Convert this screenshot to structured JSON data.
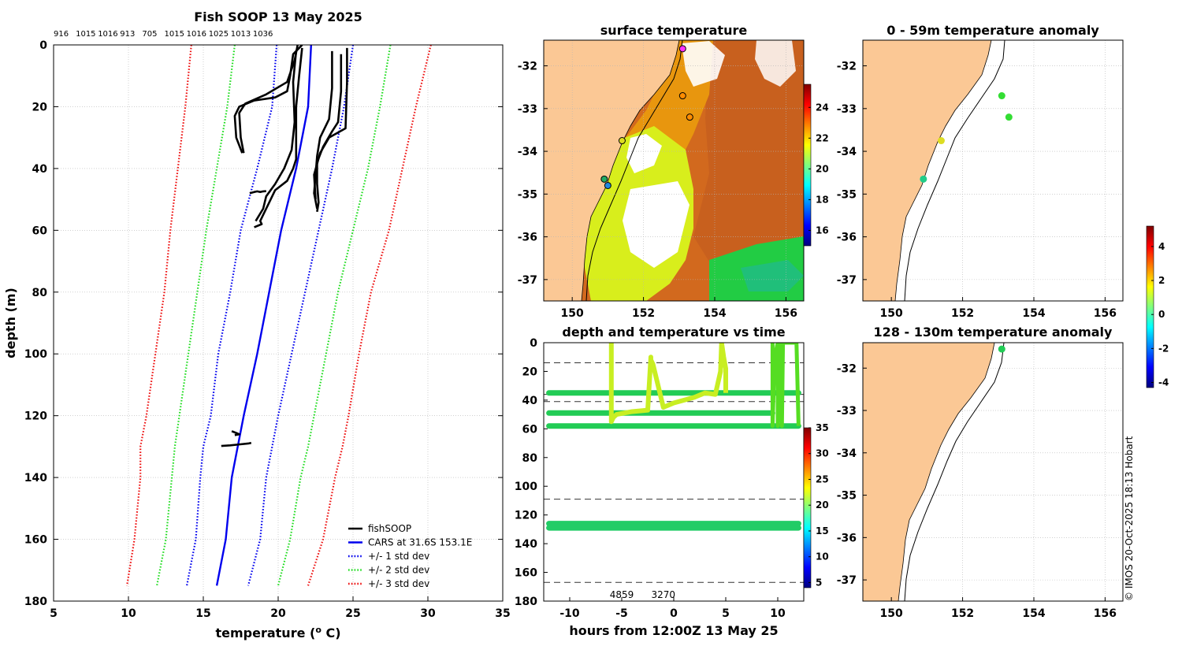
{
  "colors": {
    "land": "#fbc895",
    "fishsoop": "#000000",
    "cars": "#0000ee",
    "std1": "#0000ee",
    "std2": "#22dd22",
    "std3": "#ee1111",
    "grid": "#b5b5b5",
    "dash": "#333333"
  },
  "copyright": "© IMOS 20-Oct-2025 18:13 Hobart",
  "chart_data": [
    {
      "id": "profile",
      "type": "line",
      "title": "Fish SOOP 13 May 2025",
      "xlabel": "temperature (° C)",
      "xlabel_main": "temperature (",
      "xlabel_sup": "o",
      "xlabel_tail": " C)",
      "ylabel": "depth (m)",
      "xlim": [
        5,
        35
      ],
      "ylim": [
        180,
        0
      ],
      "xticks": [
        "5",
        "10",
        "15",
        "20",
        "25",
        "30",
        "35"
      ],
      "yticks": [
        "0",
        "20",
        "40",
        "60",
        "80",
        "100",
        "120",
        "140",
        "160",
        "180"
      ],
      "top_labels": [
        "916",
        "1015",
        "1016",
        "913",
        "705",
        "1015",
        "1016",
        "1025",
        "1013",
        "1036"
      ],
      "depth": [
        0,
        20,
        40,
        60,
        80,
        100,
        120,
        130,
        140,
        160,
        175
      ],
      "series": [
        {
          "name": "CARS at 31.6S 153.1E",
          "style": "solid",
          "color": "#0000ee",
          "values": [
            22.2,
            22.0,
            21.2,
            20.2,
            19.4,
            18.6,
            17.7,
            17.3,
            16.9,
            16.5,
            15.9
          ]
        },
        {
          "name": "+/- 1 std dev",
          "style": "dotted",
          "color": "#0000ee",
          "values": [
            19.9,
            19.6,
            18.6,
            17.5,
            16.8,
            16.0,
            15.5,
            15.0,
            14.8,
            14.5,
            13.9
          ]
        },
        {
          "name": "+/- 1 std dev upper",
          "style": "dotted",
          "color": "#0000ee",
          "values": [
            25.0,
            24.4,
            23.6,
            22.7,
            21.8,
            20.9,
            20.0,
            19.6,
            19.2,
            18.8,
            18.0
          ]
        },
        {
          "name": "+/- 2 std dev",
          "style": "dotted",
          "color": "#22dd22",
          "values": [
            17.1,
            16.6,
            15.9,
            15.2,
            14.6,
            14.0,
            13.4,
            13.1,
            12.9,
            12.5,
            11.9
          ]
        },
        {
          "name": "+/- 2 std dev upper",
          "style": "dotted",
          "color": "#22dd22",
          "values": [
            27.5,
            26.8,
            26.0,
            25.0,
            24.0,
            23.2,
            22.4,
            22.0,
            21.5,
            20.8,
            20.0
          ]
        },
        {
          "name": "+/- 3 std dev",
          "style": "dotted",
          "color": "#ee1111",
          "values": [
            14.2,
            13.8,
            13.3,
            12.8,
            12.4,
            11.8,
            11.2,
            10.8,
            10.8,
            10.4,
            9.9
          ]
        },
        {
          "name": "+/- 3 std dev upper",
          "style": "dotted",
          "color": "#ee1111",
          "values": [
            30.2,
            29.2,
            28.3,
            27.4,
            26.2,
            25.4,
            24.7,
            24.3,
            23.8,
            23.0,
            22.0
          ]
        }
      ],
      "fishsoop_traces": [
        {
          "x": [
            21.6,
            21.0,
            20.8,
            20.6,
            19.8,
            18.4,
            17.4,
            17.1,
            17.2,
            17.6
          ],
          "y": [
            0,
            3,
            10,
            15,
            17,
            18,
            20,
            23,
            30,
            35
          ]
        },
        {
          "x": [
            21.3,
            21.1,
            20.6,
            19.2,
            17.8,
            17.4,
            17.5,
            17.7
          ],
          "y": [
            0,
            5,
            12,
            16,
            19,
            22,
            30,
            35
          ]
        },
        {
          "x": [
            21.6,
            21.4,
            21.2,
            21.2,
            21.2,
            21.0,
            20.6,
            19.8,
            19.4,
            19.0,
            18.8,
            18.9,
            18.4
          ],
          "y": [
            1,
            10,
            20,
            30,
            37,
            40,
            44,
            47,
            51,
            55,
            57,
            58,
            59
          ]
        },
        {
          "x": [
            21.2,
            21.0,
            21.1,
            20.9,
            20.4,
            19.8,
            19.2,
            19.0,
            18.5
          ],
          "y": [
            2,
            12,
            25,
            34,
            40,
            45,
            49,
            53,
            57
          ]
        },
        {
          "x": [
            24.2,
            24.2,
            24.0,
            23.6,
            23.0,
            22.6,
            22.6,
            22.7,
            22.6
          ],
          "y": [
            3,
            15,
            25,
            28,
            33,
            38,
            45,
            51,
            54
          ]
        },
        {
          "x": [
            23.6,
            23.6,
            23.4,
            22.8,
            22.6,
            22.5,
            22.4,
            22.6
          ],
          "y": [
            2,
            14,
            24,
            30,
            36,
            42,
            48,
            53
          ]
        },
        {
          "x": [
            24.6,
            24.6,
            24.5,
            23.4,
            22.8,
            22.4,
            22.5
          ],
          "y": [
            1,
            12,
            27,
            30,
            35,
            42,
            50
          ]
        },
        {
          "x": [
            18.1,
            18.4,
            18.6,
            18.8,
            19.0,
            19.2
          ],
          "y": [
            48,
            47.6,
            47.4,
            47.6,
            47.4,
            47.3
          ]
        },
        {
          "x": [
            16.2,
            16.8,
            17.4,
            18.0,
            18.2
          ],
          "y": [
            129.8,
            129.6,
            129.3,
            129.0,
            128.8
          ]
        },
        {
          "x": [
            16.9,
            17.2,
            17.4,
            17.1
          ],
          "y": [
            125.0,
            125.6,
            126.0,
            126.3
          ]
        }
      ],
      "legend": {
        "placement": "bottom-right",
        "items": [
          {
            "label": "fishSOOP",
            "color": "#000000",
            "style": "solid"
          },
          {
            "label": "CARS at 31.6S 153.1E",
            "color": "#0000ee",
            "style": "solid"
          },
          {
            "label": "+/- 1 std dev",
            "color": "#0000ee",
            "style": "dotted"
          },
          {
            "label": "+/- 2 std dev",
            "color": "#22dd22",
            "style": "dotted"
          },
          {
            "label": "+/- 3 std dev",
            "color": "#ee1111",
            "style": "dotted"
          }
        ]
      }
    },
    {
      "id": "surface",
      "type": "heatmap",
      "title": "surface temperature",
      "xlim": [
        149.2,
        156.5
      ],
      "ylim": [
        -37.5,
        -31.4
      ],
      "xticks": [
        "150",
        "152",
        "154",
        "156"
      ],
      "yticks": [
        "-32",
        "-33",
        "-34",
        "-35",
        "-36",
        "-37"
      ],
      "xtick_values": [
        150,
        152,
        154,
        156
      ],
      "ytick_values": [
        -32,
        -33,
        -34,
        -35,
        -36,
        -37
      ],
      "colorbar": {
        "range": [
          15,
          25.5
        ],
        "ticks": [
          "16",
          "18",
          "20",
          "22",
          "24"
        ],
        "tick_values": [
          16,
          18,
          20,
          22,
          24
        ]
      },
      "stations": [
        {
          "lon": 153.1,
          "lat": -31.6,
          "color": "#ff33ff"
        },
        {
          "lon": 153.1,
          "lat": -32.7,
          "color": "#ff8c00"
        },
        {
          "lon": 153.3,
          "lat": -33.2,
          "color": "#ff8c00"
        },
        {
          "lon": 151.4,
          "lat": -33.75,
          "color": "#dddd22"
        },
        {
          "lon": 150.9,
          "lat": -34.65,
          "color": "#22aa66"
        },
        {
          "lon": 151.0,
          "lat": -34.8,
          "color": "#2288dd"
        }
      ]
    },
    {
      "id": "timeseries",
      "type": "scatter",
      "title": "depth and temperature vs time",
      "xlabel": "hours from 12:00Z 13 May 25",
      "xlim": [
        -12.5,
        12.5
      ],
      "ylim": [
        180,
        0
      ],
      "xticks": [
        "-10",
        "-5",
        "0",
        "5",
        "10"
      ],
      "xtick_values": [
        -10,
        -5,
        0,
        5,
        10
      ],
      "yticks": [
        "0",
        "20",
        "40",
        "60",
        "80",
        "100",
        "120",
        "140",
        "160",
        "180"
      ],
      "ytick_values": [
        0,
        20,
        40,
        60,
        80,
        100,
        120,
        140,
        160,
        180
      ],
      "dashed_depths": [
        14,
        36,
        41,
        109,
        167
      ],
      "bottom_labels": [
        {
          "text": "4859",
          "hour": -5
        },
        {
          "text": "3270",
          "hour": -1
        }
      ],
      "bands": [
        {
          "depth": 35,
          "from": -12,
          "to": 12,
          "color": "#22cc55"
        },
        {
          "depth": 49,
          "from": -12,
          "to": 9.5,
          "color": "#22cc55"
        },
        {
          "depth": 58,
          "from": -12,
          "to": 12,
          "color": "#22cc55"
        },
        {
          "depth": 126,
          "from": -12,
          "to": 12,
          "color": "#22cc66"
        },
        {
          "depth": 129,
          "from": -12,
          "to": 12,
          "color": "#22cc66"
        }
      ],
      "profiles_yellow": {
        "x": [
          -6,
          -6,
          -5.8,
          -5.5,
          -4,
          -2.5,
          -2.2,
          -2.2,
          -2,
          -1,
          0,
          1,
          2,
          3,
          4,
          4.5,
          4.6,
          4.8,
          5,
          5
        ],
        "y": [
          0,
          55,
          52,
          50,
          48,
          47,
          10,
          12,
          15,
          45,
          42,
          40,
          38,
          35,
          36,
          20,
          0,
          10,
          18,
          35
        ],
        "color": "#c8ee22"
      },
      "profiles_green": {
        "x": [
          9.5,
          9.5,
          9.7,
          10,
          10,
          10.2,
          10.4,
          10.5,
          11.8,
          12
        ],
        "y": [
          0,
          58,
          10,
          0,
          58,
          0,
          58,
          0,
          0,
          58
        ],
        "color": "#55dd22"
      },
      "colorbar": {
        "range": [
          4,
          35
        ],
        "ticks": [
          "5",
          "10",
          "15",
          "20",
          "25",
          "30",
          "35"
        ],
        "tick_values": [
          5,
          10,
          15,
          20,
          25,
          30,
          35
        ]
      }
    },
    {
      "id": "anom_upper",
      "type": "scatter",
      "title": "0 - 59m temperature anomaly",
      "xlim": [
        149.2,
        156.5
      ],
      "ylim": [
        -37.5,
        -31.4
      ],
      "xticks": [
        "150",
        "152",
        "154",
        "156"
      ],
      "xtick_values": [
        150,
        152,
        154,
        156
      ],
      "yticks": [
        "-32",
        "-33",
        "-34",
        "-35",
        "-36",
        "-37"
      ],
      "ytick_values": [
        -32,
        -33,
        -34,
        -35,
        -36,
        -37
      ],
      "points": [
        {
          "lon": 153.1,
          "lat": -32.7,
          "color": "#33dd33"
        },
        {
          "lon": 153.3,
          "lat": -33.2,
          "color": "#33dd33"
        },
        {
          "lon": 151.4,
          "lat": -33.75,
          "color": "#dddd22"
        },
        {
          "lon": 150.9,
          "lat": -34.65,
          "color": "#22cc88"
        }
      ]
    },
    {
      "id": "anom_lower",
      "type": "scatter",
      "title": "128 - 130m temperature anomaly",
      "xlim": [
        149.2,
        156.5
      ],
      "ylim": [
        -37.5,
        -31.4
      ],
      "xticks": [
        "150",
        "152",
        "154",
        "156"
      ],
      "xtick_values": [
        150,
        152,
        154,
        156
      ],
      "yticks": [
        "-32",
        "-33",
        "-34",
        "-35",
        "-36",
        "-37"
      ],
      "ytick_values": [
        -32,
        -33,
        -34,
        -35,
        -36,
        -37
      ],
      "points": [
        {
          "lon": 153.1,
          "lat": -31.55,
          "color": "#22cc55"
        }
      ],
      "colorbar": {
        "range": [
          -4.3,
          5.2
        ],
        "ticks": [
          "4",
          "2",
          "0",
          "-2",
          "-4"
        ],
        "tick_values": [
          4,
          2,
          0,
          -2,
          -4
        ]
      }
    }
  ]
}
